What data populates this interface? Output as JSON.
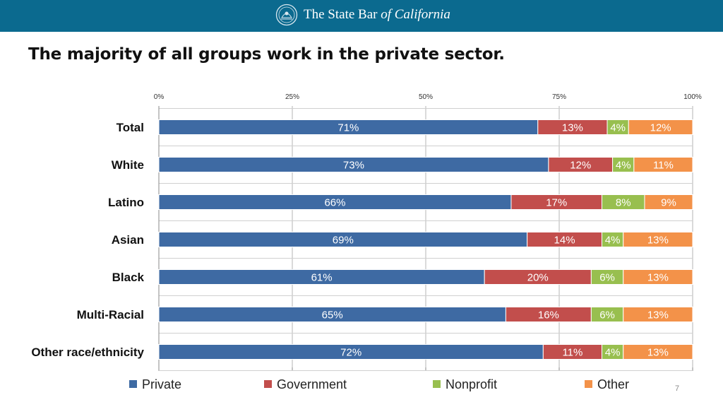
{
  "header": {
    "org_main": "The State Bar ",
    "org_italic": "of California"
  },
  "slide": {
    "title": "The majority of all groups work in the private sector.",
    "page_number": "7"
  },
  "colors": {
    "header_bg": "#0b6a8f",
    "private": "#3e6aa3",
    "government": "#c24e4c",
    "nonprofit": "#98bf4f",
    "other": "#f39249"
  },
  "chart_data": {
    "type": "bar",
    "orientation": "horizontal",
    "stacked": true,
    "percent": true,
    "title": "",
    "xlabel": "",
    "ylabel": "",
    "xlim": [
      0,
      100
    ],
    "x_ticks": [
      "0%",
      "25%",
      "50%",
      "75%",
      "100%"
    ],
    "categories": [
      "Total",
      "White",
      "Latino",
      "Asian",
      "Black",
      "Multi-Racial",
      "Other race/ethnicity"
    ],
    "series": [
      {
        "name": "Private",
        "values": [
          71,
          73,
          66,
          69,
          61,
          65,
          72
        ]
      },
      {
        "name": "Government",
        "values": [
          13,
          12,
          17,
          14,
          20,
          16,
          11
        ]
      },
      {
        "name": "Nonprofit",
        "values": [
          4,
          4,
          8,
          4,
          6,
          6,
          4
        ]
      },
      {
        "name": "Other",
        "values": [
          12,
          11,
          9,
          13,
          13,
          13,
          13
        ]
      }
    ],
    "legend": "bottom",
    "grid": true
  }
}
